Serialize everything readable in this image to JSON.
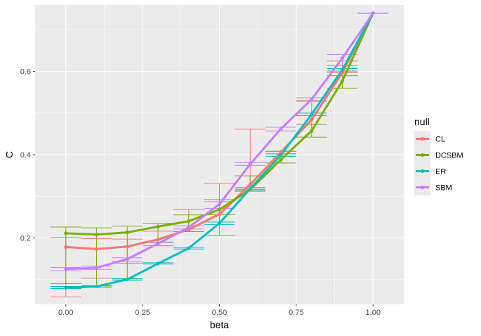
{
  "chart_data": {
    "type": "line",
    "xlabel": "beta",
    "ylabel": "C",
    "xlim": [
      -0.1,
      1.1
    ],
    "ylim": [
      0.04,
      0.76
    ],
    "x_ticks": [
      0.0,
      0.25,
      0.5,
      0.75,
      1.0
    ],
    "x_tick_labels": [
      "0.00",
      "0.25",
      "0.50",
      "0.75",
      "1.00"
    ],
    "y_ticks": [
      0.2,
      0.4,
      0.6
    ],
    "y_tick_labels": [
      "0.2",
      "0.4",
      "0.6"
    ],
    "grid": true,
    "background": "#ebebeb",
    "legend": {
      "title": "null",
      "position": "right"
    },
    "x": [
      0.0,
      0.1,
      0.2,
      0.3,
      0.4,
      0.5,
      0.6,
      0.7,
      0.8,
      0.9,
      1.0
    ],
    "series": [
      {
        "name": "CL",
        "color": "#f8766d",
        "values": [
          0.178,
          0.173,
          0.179,
          0.196,
          0.22,
          0.257,
          0.328,
          0.406,
          0.484,
          0.597,
          0.74
        ],
        "err_low": [
          0.058,
          0.103,
          0.139,
          0.181,
          0.215,
          0.205,
          0.317,
          0.402,
          0.473,
          0.597,
          0.74
        ],
        "err_high": [
          0.201,
          0.198,
          0.197,
          0.216,
          0.268,
          0.331,
          0.461,
          0.408,
          0.531,
          0.625,
          0.74
        ]
      },
      {
        "name": "DCSBM",
        "color": "#7cae00",
        "values": [
          0.211,
          0.208,
          0.213,
          0.227,
          0.24,
          0.268,
          0.316,
          0.388,
          0.457,
          0.577,
          0.74
        ],
        "err_low": [
          0.09,
          0.084,
          0.101,
          0.19,
          0.215,
          0.256,
          0.312,
          0.38,
          0.442,
          0.56,
          0.74
        ],
        "err_high": [
          0.226,
          0.224,
          0.228,
          0.235,
          0.255,
          0.292,
          0.349,
          0.408,
          0.473,
          0.59,
          0.74
        ]
      },
      {
        "name": "ER",
        "color": "#00bfc4",
        "values": [
          0.08,
          0.083,
          0.1,
          0.138,
          0.175,
          0.235,
          0.318,
          0.399,
          0.497,
          0.604,
          0.74
        ],
        "err_low": [
          0.078,
          0.081,
          0.098,
          0.137,
          0.173,
          0.232,
          0.315,
          0.396,
          0.494,
          0.601,
          0.74
        ],
        "err_high": [
          0.083,
          0.085,
          0.102,
          0.14,
          0.177,
          0.238,
          0.321,
          0.402,
          0.5,
          0.607,
          0.74
        ]
      },
      {
        "name": "SBM",
        "color": "#c77cff",
        "values": [
          0.125,
          0.128,
          0.149,
          0.186,
          0.225,
          0.281,
          0.377,
          0.462,
          0.533,
          0.632,
          0.74
        ],
        "err_low": [
          0.121,
          0.124,
          0.143,
          0.181,
          0.221,
          0.271,
          0.374,
          0.457,
          0.528,
          0.614,
          0.74
        ],
        "err_high": [
          0.129,
          0.132,
          0.152,
          0.189,
          0.229,
          0.287,
          0.381,
          0.466,
          0.537,
          0.641,
          0.74
        ]
      }
    ]
  }
}
